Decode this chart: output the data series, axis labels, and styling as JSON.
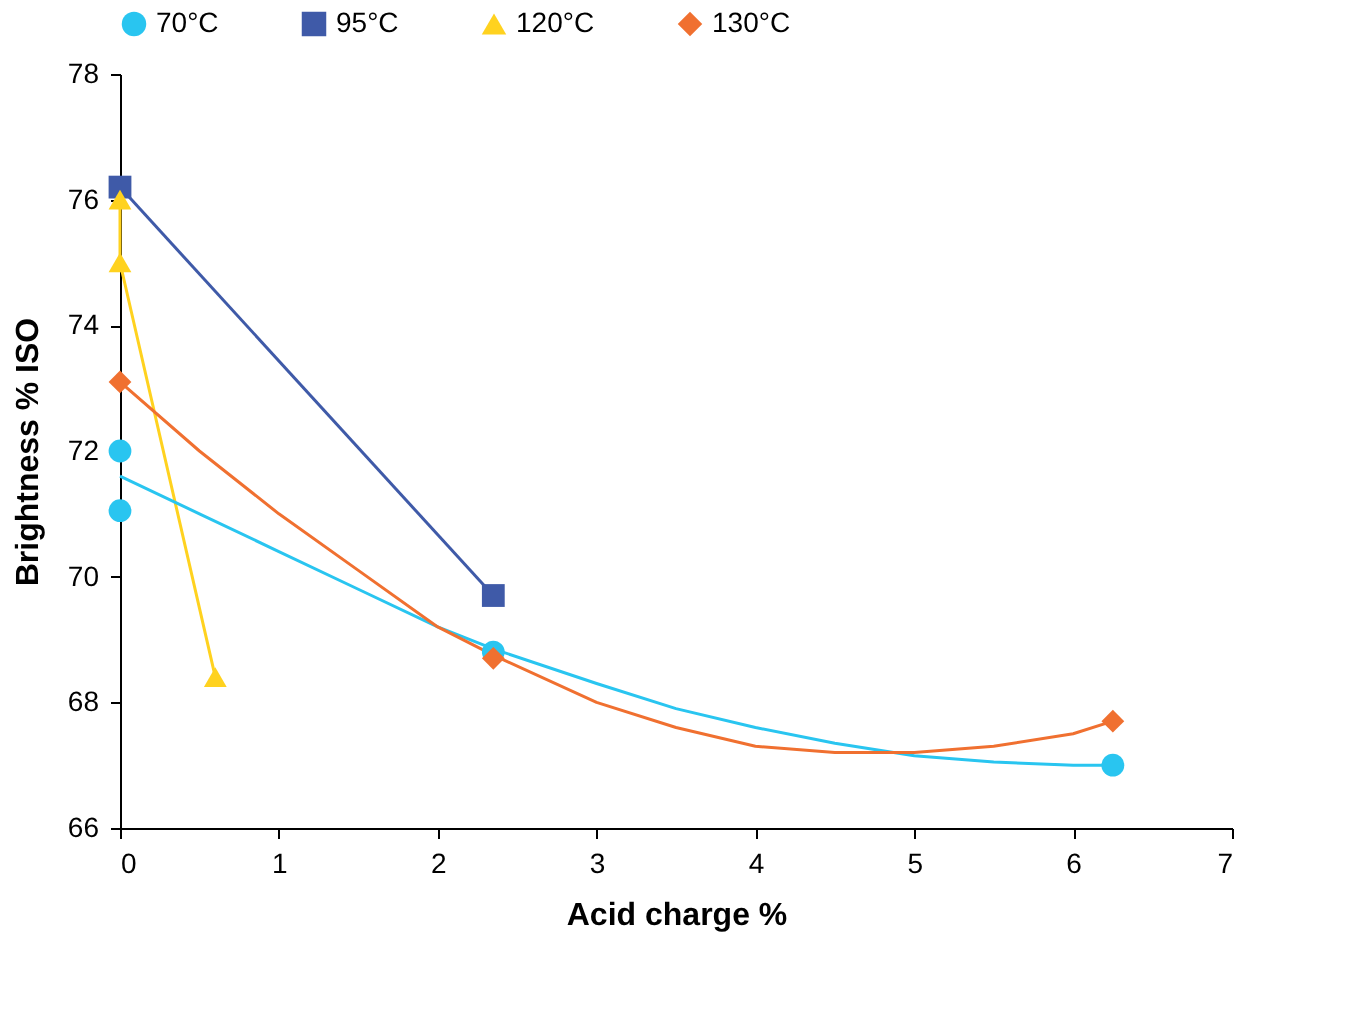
{
  "chart_data": {
    "type": "scatter",
    "xlabel": "Acid charge %",
    "ylabel": "Brightness % ISO",
    "xlim": [
      0,
      7
    ],
    "ylim": [
      66,
      78
    ],
    "xticks": [
      0,
      1,
      2,
      3,
      4,
      5,
      6,
      7
    ],
    "yticks": [
      66,
      68,
      70,
      72,
      74,
      76,
      78
    ],
    "grid": false,
    "legend": "top",
    "series": [
      {
        "name": "70°C",
        "marker": "circle",
        "color": "#29c5f0",
        "x": [
          0,
          0,
          2.35,
          6.25
        ],
        "values": [
          72.0,
          71.05,
          68.8,
          67.0
        ]
      },
      {
        "name": "95°C",
        "type": "line",
        "marker": "square",
        "color": "#3f5aa8",
        "x": [
          0,
          2.35
        ],
        "values": [
          76.2,
          69.7
        ]
      },
      {
        "name": "120°C",
        "type": "line",
        "marker": "triangle",
        "color": "#ffd21f",
        "x": [
          0,
          0,
          0.6
        ],
        "values": [
          76.0,
          75.0,
          68.4
        ]
      },
      {
        "name": "130°C",
        "marker": "diamond",
        "color": "#f07030",
        "x": [
          0,
          2.35,
          6.25
        ],
        "values": [
          73.1,
          68.7,
          67.7
        ]
      },
      {
        "type": "line",
        "marker": "none",
        "color": "#29c5f0",
        "x": [
          0,
          0.5,
          1,
          1.5,
          2,
          2.35,
          3,
          3.5,
          4,
          4.5,
          5,
          5.5,
          6,
          6.25
        ],
        "values": [
          71.6,
          71.0,
          70.4,
          69.8,
          69.2,
          68.85,
          68.3,
          67.9,
          67.6,
          67.35,
          67.15,
          67.05,
          67.0,
          67.0
        ]
      },
      {
        "type": "line",
        "marker": "none",
        "color": "#f07030",
        "x": [
          0,
          0.5,
          1,
          1.5,
          2,
          2.35,
          3,
          3.5,
          4,
          4.5,
          5,
          5.5,
          6,
          6.25
        ],
        "values": [
          73.1,
          72.0,
          71.0,
          70.1,
          69.2,
          68.75,
          68.0,
          67.6,
          67.3,
          67.2,
          67.2,
          67.3,
          67.5,
          67.7
        ]
      }
    ]
  }
}
